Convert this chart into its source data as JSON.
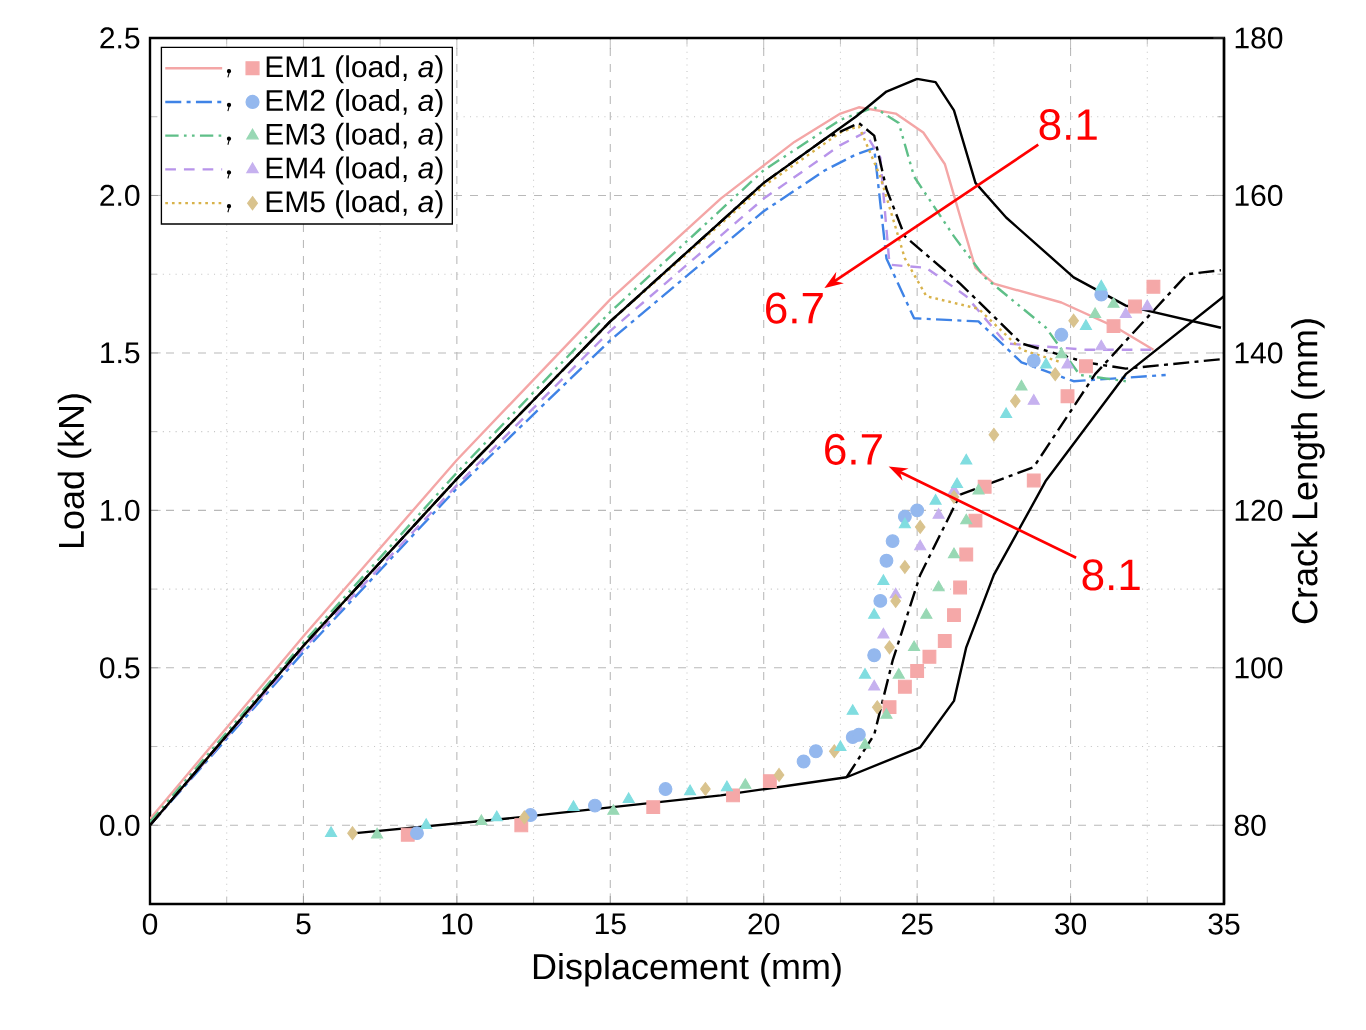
{
  "chart_data": {
    "type": "line",
    "xlabel": "Displacement (mm)",
    "ylabel": "Load (kN)",
    "y2label": "Crack Length (mm)",
    "xlim": [
      0,
      35
    ],
    "xticks": [
      0,
      5,
      10,
      15,
      20,
      25,
      30,
      35
    ],
    "ylim": [
      -0.25,
      2.5
    ],
    "yticks": [
      {
        "value": 0,
        "label": "0.0"
      },
      0.5,
      {
        "value": 1,
        "label": "1.0"
      },
      1.5,
      {
        "value": 2,
        "label": "2.0"
      },
      2.5
    ],
    "y2lim": [
      70,
      180
    ],
    "y2ticks": [
      80,
      100,
      120,
      140,
      160,
      180
    ],
    "grid": true,
    "legend": "top left",
    "series": [
      {
        "color": "#f4a6a6",
        "line_style": "solid",
        "marker": "none",
        "x": [
          0,
          5,
          10,
          15,
          18.6,
          21,
          22.5,
          23.1,
          24.3,
          25.2,
          25.9,
          26.5,
          26.9,
          27.5,
          29.7,
          31.5,
          32.7
        ],
        "values": [
          0.02,
          0.6,
          1.16,
          1.67,
          1.99,
          2.17,
          2.26,
          2.28,
          2.26,
          2.2,
          2.1,
          1.9,
          1.77,
          1.72,
          1.66,
          1.58,
          1.51
        ]
      },
      {
        "color": "#3f83e6",
        "line_style": "dashdot",
        "marker": "none",
        "x": [
          0,
          5,
          10,
          15,
          20,
          22,
          23,
          23.6,
          24.0,
          24.9,
          27.0,
          28.4,
          30.1,
          33.1
        ],
        "values": [
          0,
          0.55,
          1.07,
          1.54,
          1.95,
          2.08,
          2.13,
          2.15,
          1.8,
          1.61,
          1.6,
          1.47,
          1.41,
          1.43
        ]
      },
      {
        "color": "#5fbf88",
        "line_style": "dashdotdot",
        "marker": "none",
        "x": [
          0,
          5,
          10,
          15,
          20,
          22.5,
          23.6,
          24.4,
          24.9,
          26.2,
          27.2,
          29.2,
          30.3,
          31.8
        ],
        "values": [
          0.01,
          0.58,
          1.12,
          1.63,
          2.08,
          2.24,
          2.28,
          2.23,
          2.06,
          1.87,
          1.74,
          1.58,
          1.43,
          1.41
        ]
      },
      {
        "color": "#b894ea",
        "line_style": "dashed",
        "marker": "none",
        "x": [
          0,
          5,
          10,
          15,
          20,
          22.5,
          23.3,
          23.8,
          24.1,
          25.3,
          26.6,
          27.9,
          30.5,
          32.7
        ],
        "values": [
          0,
          0.56,
          1.08,
          1.57,
          1.99,
          2.16,
          2.2,
          2.12,
          1.78,
          1.77,
          1.68,
          1.53,
          1.51,
          1.51
        ]
      },
      {
        "color": "#d8b24a",
        "line_style": "dotted",
        "marker": "none",
        "x": [
          0,
          5,
          10,
          15,
          20,
          22.5,
          23.1,
          23.8,
          24.6,
          25.3,
          27.0,
          28.4,
          29.7
        ],
        "values": [
          0,
          0.57,
          1.1,
          1.6,
          2.03,
          2.2,
          2.22,
          2.06,
          1.8,
          1.68,
          1.64,
          1.51,
          1.47
        ]
      },
      {
        "color": "#000000",
        "line_style": "solid",
        "marker": "none",
        "x": [
          0,
          5,
          10,
          15,
          20,
          22,
          23,
          24,
          25,
          25.6,
          26.2,
          26.9,
          27.9,
          30.1,
          31.8,
          34.9
        ],
        "values": [
          0,
          0.57,
          1.1,
          1.6,
          2.04,
          2.18,
          2.25,
          2.33,
          2.37,
          2.36,
          2.27,
          2.04,
          1.93,
          1.74,
          1.65,
          1.58
        ]
      },
      {
        "color": "#000000",
        "line_style": "dashdot",
        "marker": "none",
        "x": [
          0,
          5,
          10,
          15,
          20,
          22,
          23.1,
          23.6,
          24.0,
          24.6,
          26.4,
          28.4,
          30.5,
          31.8,
          34.9
        ],
        "values": [
          0,
          0.57,
          1.1,
          1.6,
          2.04,
          2.18,
          2.23,
          2.19,
          2.02,
          1.87,
          1.72,
          1.53,
          1.47,
          1.45,
          1.48
        ]
      },
      {
        "type": "scatter",
        "axis": "y2",
        "name": "EM1 (load, *a*)",
        "color": "#f5a8a8",
        "marker": "square",
        "x": [
          8.4,
          12.1,
          16.4,
          19.0,
          20.2,
          24.1,
          24.6,
          25.0,
          25.4,
          25.9,
          26.2,
          26.4,
          26.6,
          26.9,
          27.2,
          28.8,
          29.9,
          30.5,
          31.4,
          32.1,
          32.7
        ],
        "values": [
          78.8,
          80,
          82.3,
          83.8,
          85.6,
          95,
          97.6,
          99.6,
          101.4,
          103.4,
          106.7,
          110.2,
          114.4,
          118.7,
          123,
          123.8,
          134.5,
          138.3,
          143.4,
          145.9,
          148.4
        ]
      },
      {
        "type": "scatter",
        "axis": "y2",
        "name": "EM2 (load, *a*)",
        "color": "#94b8ee",
        "marker": "circle",
        "x": [
          8.7,
          12.4,
          14.5,
          16.8,
          21.3,
          21.7,
          22.9,
          23.1,
          23.6,
          23.8,
          24.0,
          24.2,
          24.6,
          25.0,
          28.8,
          29.7,
          31.0
        ],
        "values": [
          79,
          81.3,
          82.5,
          84.6,
          88.1,
          89.4,
          91.2,
          91.5,
          101.6,
          108.5,
          113.6,
          116.1,
          119.2,
          120,
          139,
          142.3,
          147.4
        ]
      },
      {
        "type": "scatter",
        "axis": "y2",
        "name": "EM3 (load, *a*)",
        "color": "#98d8b4",
        "marker": "triangle",
        "x": [
          7.4,
          10.8,
          15.1,
          19.4,
          23.3,
          24.0,
          24.4,
          24.9,
          25.3,
          25.7,
          26.2,
          26.6,
          27.0,
          28.4,
          29.7,
          30.8,
          31.4
        ],
        "values": [
          78.8,
          80.5,
          81.8,
          85.1,
          90.2,
          94,
          99.1,
          102.6,
          106.7,
          110.2,
          114.4,
          118.7,
          122.5,
          135.7,
          139.8,
          144.9,
          146.2
        ]
      },
      {
        "type": "scatter",
        "axis": "y2",
        "name": "EM4 (load, *a*)",
        "color": "#c6b1ef",
        "marker": "triangle-down",
        "x": [
          23.6,
          23.9,
          24.3,
          25.1,
          25.7,
          26.2,
          28.8,
          29.9,
          31.0,
          31.8,
          32.5
        ],
        "values": [
          97.6,
          104.2,
          109.3,
          115.4,
          119.4,
          122.5,
          133.9,
          138.5,
          140.8,
          144.9,
          145.9
        ]
      },
      {
        "type": "scatter",
        "axis": "y2",
        "name": "EM5 (load, *a*)",
        "color": "#d9c38e",
        "marker": "diamond",
        "x": [
          6.6,
          12.2,
          18.1,
          20.5,
          22.3,
          23.7,
          24.1,
          24.3,
          24.6,
          25.1,
          26.2,
          27.5,
          28.2,
          29.5,
          30.1
        ],
        "values": [
          79,
          81,
          84.6,
          86.4,
          89.4,
          95,
          102.6,
          108.5,
          112.8,
          117.9,
          121.7,
          129.6,
          133.9,
          137.3,
          144.1
        ]
      },
      {
        "type": "scatter",
        "axis": "y2",
        "color": "#80dde0",
        "marker": "triangle-left",
        "x": [
          5.9,
          9.0,
          11.3,
          13.8,
          15.6,
          17.6,
          18.8,
          22.5,
          22.9,
          23.3,
          23.6,
          23.9,
          24.6,
          25.6,
          26.3,
          26.6,
          27.9,
          29.2,
          30.5,
          31.0
        ],
        "values": [
          79,
          80,
          81,
          82.3,
          83.3,
          84.3,
          84.8,
          89.9,
          94.5,
          99.1,
          106.7,
          111,
          118.2,
          121.2,
          123.3,
          126.3,
          132.2,
          138.5,
          143.4,
          148.4
        ]
      },
      {
        "axis": "y2",
        "color": "#000000",
        "line_style": "solid",
        "marker": "none",
        "x": [
          6.7,
          12,
          18.6,
          22.7,
          25.1,
          26.2,
          26.6,
          27.5,
          29.2,
          31.8,
          35
        ],
        "values": [
          79,
          81,
          83.8,
          86.1,
          89.9,
          95.8,
          102.6,
          111.8,
          123.8,
          137.3,
          147.2
        ]
      },
      {
        "axis": "y2",
        "color": "#000000",
        "line_style": "dashdot",
        "marker": "none",
        "x": [
          22.7,
          23.6,
          24.2,
          25.1,
          26.4,
          28.8,
          30.8,
          33.8,
          34.9
        ],
        "values": [
          86.1,
          91.5,
          100.9,
          111.8,
          122,
          125.5,
          137.3,
          150,
          150.5
        ]
      }
    ],
    "annotations": [
      "8.1",
      "6.7",
      "8.1",
      "6.7"
    ]
  }
}
